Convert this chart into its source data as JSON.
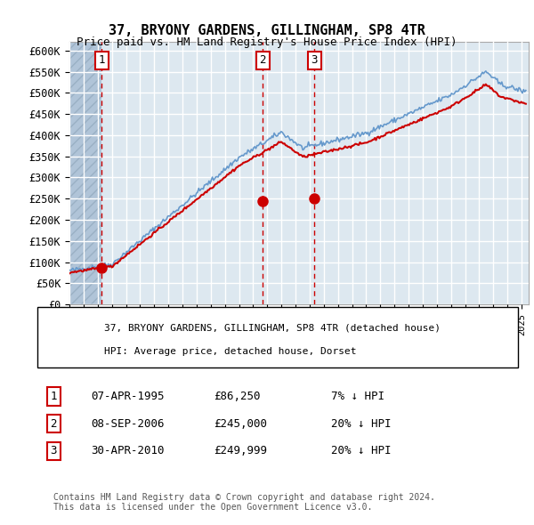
{
  "title": "37, BRYONY GARDENS, GILLINGHAM, SP8 4TR",
  "subtitle": "Price paid vs. HM Land Registry's House Price Index (HPI)",
  "ylabel": "",
  "xlabel": "",
  "ylim": [
    0,
    620000
  ],
  "yticks": [
    0,
    50000,
    100000,
    150000,
    200000,
    250000,
    300000,
    350000,
    400000,
    450000,
    500000,
    550000,
    600000
  ],
  "ytick_labels": [
    "£0",
    "£50K",
    "£100K",
    "£150K",
    "£200K",
    "£250K",
    "£300K",
    "£350K",
    "£400K",
    "£450K",
    "£500K",
    "£550K",
    "£600K"
  ],
  "background_color": "#dde8f0",
  "hatch_color": "#b0c4d8",
  "grid_color": "#ffffff",
  "house_color": "#cc0000",
  "hpi_color": "#6699cc",
  "sale_marker_color": "#cc0000",
  "annotation_box_color": "#cc0000",
  "dashed_line_color": "#cc0000",
  "legend_box_color": "#ffffff",
  "purchases": [
    {
      "num": 1,
      "date_x": 1995.27,
      "price": 86250
    },
    {
      "num": 2,
      "date_x": 2006.68,
      "price": 245000
    },
    {
      "num": 3,
      "date_x": 2010.33,
      "price": 249999
    }
  ],
  "legend_entries": [
    "37, BRYONY GARDENS, GILLINGHAM, SP8 4TR (detached house)",
    "HPI: Average price, detached house, Dorset"
  ],
  "table_entries": [
    {
      "num": 1,
      "date": "07-APR-1995",
      "price": "£86,250",
      "hpi": "7% ↓ HPI"
    },
    {
      "num": 2,
      "date": "08-SEP-2006",
      "price": "£245,000",
      "hpi": "20% ↓ HPI"
    },
    {
      "num": 3,
      "date": "30-APR-2010",
      "price": "£249,999",
      "hpi": "20% ↓ HPI"
    }
  ],
  "footer": "Contains HM Land Registry data © Crown copyright and database right 2024.\nThis data is licensed under the Open Government Licence v3.0.",
  "xlim_start": 1993.0,
  "xlim_end": 2025.5
}
